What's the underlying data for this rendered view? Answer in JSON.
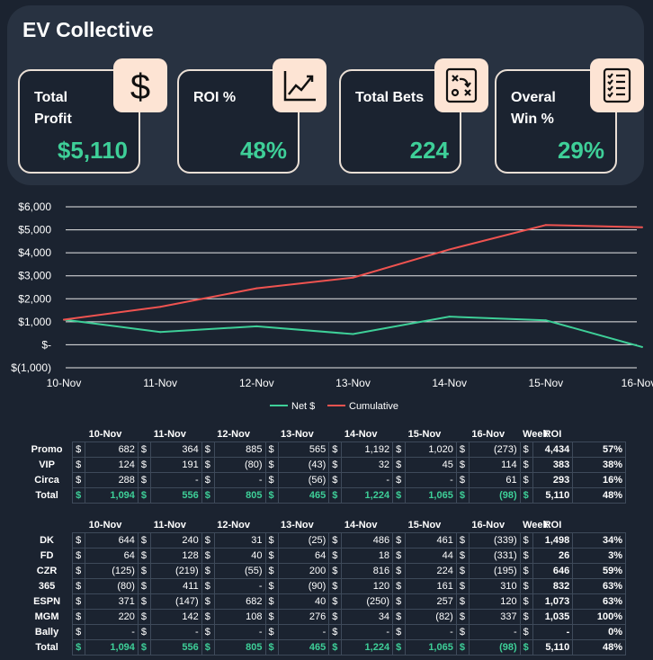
{
  "app": {
    "title": "EV Collective"
  },
  "kpis": [
    {
      "label": "Total Profit",
      "value": "$5,110",
      "icon": "dollar-icon"
    },
    {
      "label": "ROI %",
      "value": "48%",
      "icon": "trend-chart-icon"
    },
    {
      "label": "Total Bets",
      "value": "224",
      "icon": "strategy-board-icon"
    },
    {
      "label": "Overal Win %",
      "value": "29%",
      "icon": "checklist-icon"
    }
  ],
  "chart_data": {
    "type": "line",
    "categories": [
      "10-Nov",
      "11-Nov",
      "12-Nov",
      "13-Nov",
      "14-Nov",
      "15-Nov",
      "16-Nov"
    ],
    "series": [
      {
        "name": "Net $",
        "color": "#3ecf98",
        "values": [
          1094,
          556,
          805,
          465,
          1224,
          1065,
          -98
        ]
      },
      {
        "name": "Cumulative",
        "color": "#ef5350",
        "values": [
          1094,
          1650,
          2455,
          2920,
          4144,
          5209,
          5110
        ]
      }
    ],
    "y_ticks": [
      "$6,000",
      "$5,000",
      "$4,000",
      "$3,000",
      "$2,000",
      "$1,000",
      "$-",
      "$(1,000)"
    ],
    "ylim": [
      -1000,
      6000
    ],
    "grid": true,
    "legend_position": "bottom"
  },
  "table1": {
    "columns": [
      "10-Nov",
      "11-Nov",
      "12-Nov",
      "13-Nov",
      "14-Nov",
      "15-Nov",
      "16-Nov",
      "Week",
      "ROI"
    ],
    "rows": [
      {
        "label": "Promo",
        "cells": [
          "682",
          "364",
          "885",
          "565",
          "1,192",
          "1,020",
          "(273)"
        ],
        "week": "4,434",
        "roi": "57%"
      },
      {
        "label": "VIP",
        "cells": [
          "124",
          "191",
          "(80)",
          "(43)",
          "32",
          "45",
          "114"
        ],
        "week": "383",
        "roi": "38%"
      },
      {
        "label": "Circa",
        "cells": [
          "288",
          "-",
          "-",
          "(56)",
          "-",
          "-",
          "61"
        ],
        "week": "293",
        "roi": "16%"
      }
    ],
    "total": {
      "label": "Total",
      "cells": [
        "1,094",
        "556",
        "805",
        "465",
        "1,224",
        "1,065",
        "(98)"
      ],
      "week": "5,110",
      "roi": "48%"
    }
  },
  "table2": {
    "columns": [
      "10-Nov",
      "11-Nov",
      "12-Nov",
      "13-Nov",
      "14-Nov",
      "15-Nov",
      "16-Nov",
      "Week",
      "ROI"
    ],
    "rows": [
      {
        "label": "DK",
        "cells": [
          "644",
          "240",
          "31",
          "(25)",
          "486",
          "461",
          "(339)"
        ],
        "week": "1,498",
        "roi": "34%"
      },
      {
        "label": "FD",
        "cells": [
          "64",
          "128",
          "40",
          "64",
          "18",
          "44",
          "(331)"
        ],
        "week": "26",
        "roi": "3%"
      },
      {
        "label": "CZR",
        "cells": [
          "(125)",
          "(219)",
          "(55)",
          "200",
          "816",
          "224",
          "(195)"
        ],
        "week": "646",
        "roi": "59%"
      },
      {
        "label": "365",
        "cells": [
          "(80)",
          "411",
          "-",
          "(90)",
          "120",
          "161",
          "310"
        ],
        "week": "832",
        "roi": "63%"
      },
      {
        "label": "ESPN",
        "cells": [
          "371",
          "(147)",
          "682",
          "40",
          "(250)",
          "257",
          "120"
        ],
        "week": "1,073",
        "roi": "63%"
      },
      {
        "label": "MGM",
        "cells": [
          "220",
          "142",
          "108",
          "276",
          "34",
          "(82)",
          "337"
        ],
        "week": "1,035",
        "roi": "100%"
      },
      {
        "label": "Bally",
        "cells": [
          "-",
          "-",
          "-",
          "-",
          "-",
          "-",
          "-"
        ],
        "week": "-",
        "roi": "0%"
      }
    ],
    "total": {
      "label": "Total",
      "cells": [
        "1,094",
        "556",
        "805",
        "465",
        "1,224",
        "1,065",
        "(98)"
      ],
      "week": "5,110",
      "roi": "48%"
    }
  },
  "currency_symbol": "$"
}
